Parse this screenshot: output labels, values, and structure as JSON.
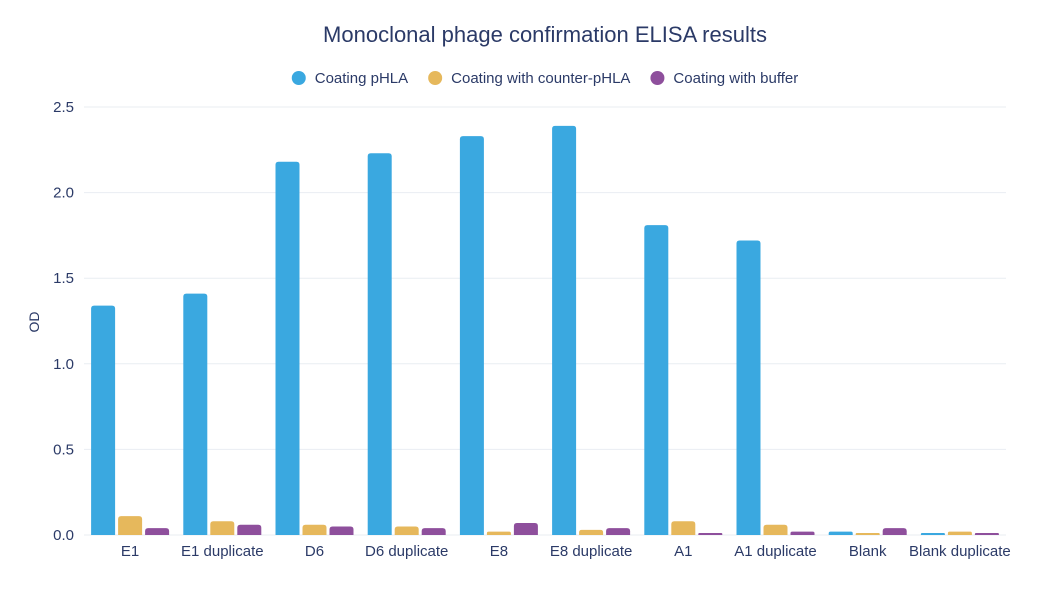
{
  "chart_data": {
    "type": "bar",
    "title": "Monoclonal phage confirmation ELISA results",
    "xlabel": "",
    "ylabel": "OD",
    "ylim": [
      0,
      2.5
    ],
    "yticks": [
      "0.0",
      "0.5",
      "1.0",
      "1.5",
      "2.0",
      "2.5"
    ],
    "grid": true,
    "legend_position": "top",
    "categories": [
      "E1",
      "E1 duplicate",
      "D6",
      "D6 duplicate",
      "E8",
      "E8 duplicate",
      "A1",
      "A1 duplicate",
      "Blank",
      "Blank duplicate"
    ],
    "series": [
      {
        "name": "Coating pHLA",
        "color": "#3aa8e0",
        "values": [
          1.34,
          1.41,
          2.18,
          2.23,
          2.33,
          2.39,
          1.81,
          1.72,
          0.02,
          0.005
        ]
      },
      {
        "name": "Coating with counter-pHLA",
        "color": "#e6b85c",
        "values": [
          0.11,
          0.08,
          0.06,
          0.05,
          0.02,
          0.03,
          0.08,
          0.06,
          0.01,
          0.02
        ]
      },
      {
        "name": "Coating with buffer",
        "color": "#8e4f9c",
        "values": [
          0.04,
          0.06,
          0.05,
          0.04,
          0.07,
          0.04,
          0.01,
          0.02,
          0.04,
          0.01
        ]
      }
    ]
  }
}
